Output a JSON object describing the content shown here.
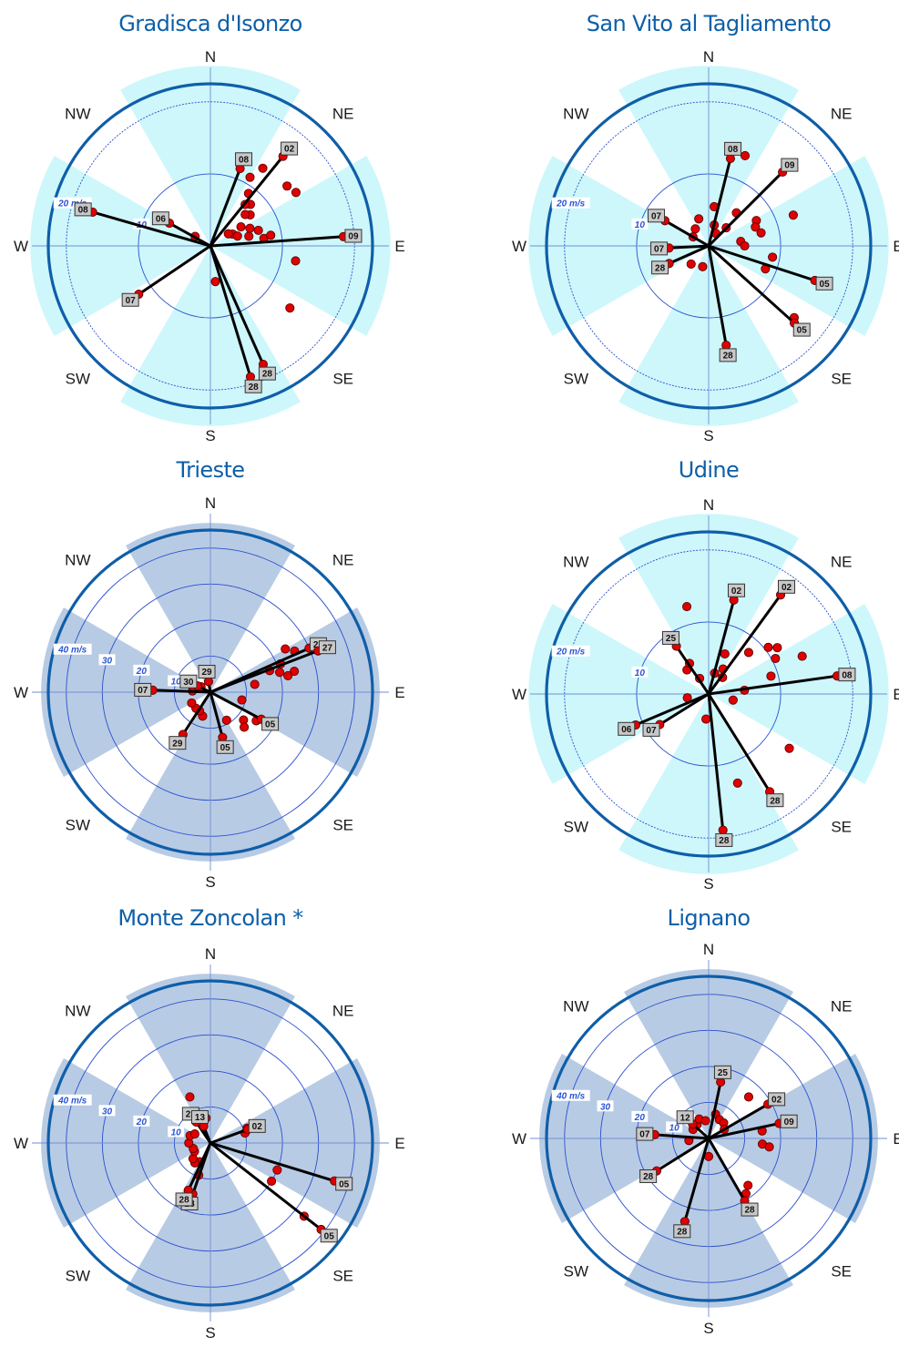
{
  "charts": [
    {
      "title": "Gradisca d'Isonzo",
      "sector_color": "#cdf7fb",
      "max_speed": 25,
      "rings": [
        10,
        20
      ],
      "ring_labels": [
        {
          "speed": 10,
          "text": "10"
        },
        {
          "speed": 20,
          "text": "20 m/s"
        }
      ],
      "sectors": [
        {
          "dir": "N",
          "speed": 25
        },
        {
          "dir": "E",
          "speed": 25
        },
        {
          "dir": "S",
          "speed": 25
        },
        {
          "dir": "W",
          "speed": 25
        }
      ],
      "direction_labels": [
        "N",
        "NE",
        "E",
        "SE",
        "S",
        "SW",
        "W",
        "NW"
      ],
      "peaks": [
        {
          "bearing": 21,
          "speed": 11.5,
          "day": "08"
        },
        {
          "bearing": 39,
          "speed": 16,
          "day": "02"
        },
        {
          "bearing": 86,
          "speed": 18.5,
          "day": "09"
        },
        {
          "bearing": 163,
          "speed": 19,
          "day": "28"
        },
        {
          "bearing": 156,
          "speed": 18,
          "day": "28"
        },
        {
          "bearing": 299,
          "speed": 6.5,
          "day": "06"
        },
        {
          "bearing": 286,
          "speed": 17,
          "day": "08"
        },
        {
          "bearing": 236,
          "speed": 12,
          "day": "07"
        }
      ],
      "observations": [
        {
          "bearing": 30,
          "speed": 11
        },
        {
          "bearing": 34,
          "speed": 13
        },
        {
          "bearing": 52,
          "speed": 13.5
        },
        {
          "bearing": 58,
          "speed": 14
        },
        {
          "bearing": 44,
          "speed": 8
        },
        {
          "bearing": 52,
          "speed": 7
        },
        {
          "bearing": 58,
          "speed": 5
        },
        {
          "bearing": 62,
          "speed": 3.5
        },
        {
          "bearing": 66,
          "speed": 6
        },
        {
          "bearing": 72,
          "speed": 7
        },
        {
          "bearing": 76,
          "speed": 5.5
        },
        {
          "bearing": 82,
          "speed": 7.5
        },
        {
          "bearing": 80,
          "speed": 8.5
        },
        {
          "bearing": 100,
          "speed": 12
        },
        {
          "bearing": 40,
          "speed": 7.5
        },
        {
          "bearing": 48,
          "speed": 6.5
        },
        {
          "bearing": 56,
          "speed": 3
        },
        {
          "bearing": 70,
          "speed": 4
        },
        {
          "bearing": 128,
          "speed": 14
        },
        {
          "bearing": 172,
          "speed": 5
        },
        {
          "bearing": 302,
          "speed": 2.5
        },
        {
          "bearing": 36,
          "speed": 9
        }
      ]
    },
    {
      "title": "San Vito al Tagliamento",
      "sector_color": "#cdf7fb",
      "max_speed": 25,
      "rings": [
        10,
        20
      ],
      "ring_labels": [
        {
          "speed": 10,
          "text": "10"
        },
        {
          "speed": 20,
          "text": "20 m/s"
        }
      ],
      "sectors": [
        {
          "dir": "N",
          "speed": 25
        },
        {
          "dir": "E",
          "speed": 25
        },
        {
          "dir": "S",
          "speed": 25
        },
        {
          "dir": "W",
          "speed": 25
        }
      ],
      "direction_labels": [
        "N",
        "NE",
        "E",
        "SE",
        "S",
        "SW",
        "W",
        "NW"
      ],
      "peaks": [
        {
          "bearing": 14,
          "speed": 12.5,
          "day": "08"
        },
        {
          "bearing": 45,
          "speed": 14.5,
          "day": "09"
        },
        {
          "bearing": 108,
          "speed": 15.5,
          "day": "05"
        },
        {
          "bearing": 132,
          "speed": 16,
          "day": "05"
        },
        {
          "bearing": 170,
          "speed": 14,
          "day": "28"
        },
        {
          "bearing": 246,
          "speed": 6,
          "day": "28"
        },
        {
          "bearing": 300,
          "speed": 7,
          "day": "07"
        },
        {
          "bearing": 267,
          "speed": 5.5,
          "day": "07"
        }
      ],
      "observations": [
        {
          "bearing": 22,
          "speed": 13.5
        },
        {
          "bearing": 40,
          "speed": 6
        },
        {
          "bearing": 62,
          "speed": 7.5
        },
        {
          "bearing": 70,
          "speed": 12.5
        },
        {
          "bearing": 76,
          "speed": 7.5
        },
        {
          "bearing": 68,
          "speed": 7
        },
        {
          "bearing": 82,
          "speed": 4.5
        },
        {
          "bearing": 90,
          "speed": 5
        },
        {
          "bearing": 100,
          "speed": 9
        },
        {
          "bearing": 112,
          "speed": 8.5
        },
        {
          "bearing": 8,
          "speed": 5.5
        },
        {
          "bearing": 30,
          "speed": 2
        },
        {
          "bearing": 44,
          "speed": 3.5
        },
        {
          "bearing": 340,
          "speed": 4
        },
        {
          "bearing": 322,
          "speed": 3
        },
        {
          "bearing": 300,
          "speed": 2.5
        },
        {
          "bearing": 224,
          "speed": 3.5
        },
        {
          "bearing": 196,
          "speed": 3
        },
        {
          "bearing": 130,
          "speed": 15.5
        },
        {
          "bearing": 15,
          "speed": 3
        }
      ]
    },
    {
      "title": "Trieste",
      "sector_color": "#b8cbe4",
      "max_speed": 50,
      "rings": [
        10,
        20,
        30,
        40
      ],
      "ring_labels": [
        {
          "speed": 10,
          "text": "10"
        },
        {
          "speed": 20,
          "text": "20"
        },
        {
          "speed": 30,
          "text": "30"
        },
        {
          "speed": 40,
          "text": "40 m/s"
        }
      ],
      "sectors": [
        {
          "dir": "N",
          "speed": 47
        },
        {
          "dir": "E",
          "speed": 47
        },
        {
          "dir": "S",
          "speed": 47
        },
        {
          "dir": "W",
          "speed": 47
        }
      ],
      "direction_labels": [
        "N",
        "NE",
        "E",
        "SE",
        "S",
        "SW",
        "W",
        "NW"
      ],
      "peaks": [
        {
          "bearing": 66,
          "speed": 30,
          "day": "27"
        },
        {
          "bearing": 69,
          "speed": 32,
          "day": "27"
        },
        {
          "bearing": 118,
          "speed": 16,
          "day": "05"
        },
        {
          "bearing": 165,
          "speed": 13,
          "day": "05"
        },
        {
          "bearing": 213,
          "speed": 14,
          "day": "29"
        },
        {
          "bearing": 272,
          "speed": 16,
          "day": "07"
        },
        {
          "bearing": 296,
          "speed": 4,
          "day": "30"
        },
        {
          "bearing": 350,
          "speed": 3,
          "day": "29"
        }
      ],
      "observations": [
        {
          "bearing": 60,
          "speed": 24
        },
        {
          "bearing": 64,
          "speed": 26
        },
        {
          "bearing": 68,
          "speed": 21
        },
        {
          "bearing": 70,
          "speed": 17.5
        },
        {
          "bearing": 74,
          "speed": 20
        },
        {
          "bearing": 76,
          "speed": 24
        },
        {
          "bearing": 78,
          "speed": 22
        },
        {
          "bearing": 80,
          "speed": 12.5
        },
        {
          "bearing": 104,
          "speed": 9
        },
        {
          "bearing": 122,
          "speed": 15
        },
        {
          "bearing": 130,
          "speed": 12
        },
        {
          "bearing": 136,
          "speed": 13.5
        },
        {
          "bearing": 150,
          "speed": 9
        },
        {
          "bearing": 198,
          "speed": 7
        },
        {
          "bearing": 210,
          "speed": 6
        },
        {
          "bearing": 222,
          "speed": 6
        },
        {
          "bearing": 240,
          "speed": 6
        },
        {
          "bearing": 274,
          "speed": 5
        },
        {
          "bearing": 288,
          "speed": 5
        },
        {
          "bearing": 300,
          "speed": 3
        }
      ]
    },
    {
      "title": "Udine",
      "sector_color": "#cdf7fb",
      "max_speed": 25,
      "rings": [
        10,
        20
      ],
      "ring_labels": [
        {
          "speed": 10,
          "text": "10"
        },
        {
          "speed": 20,
          "text": "20 m/s"
        }
      ],
      "sectors": [
        {
          "dir": "N",
          "speed": 25
        },
        {
          "dir": "E",
          "speed": 25
        },
        {
          "dir": "S",
          "speed": 25
        },
        {
          "dir": "W",
          "speed": 25
        }
      ],
      "direction_labels": [
        "N",
        "NE",
        "E",
        "SE",
        "S",
        "SW",
        "W",
        "NW"
      ],
      "peaks": [
        {
          "bearing": 15,
          "speed": 13.5,
          "day": "02"
        },
        {
          "bearing": 36,
          "speed": 17,
          "day": "02"
        },
        {
          "bearing": 82,
          "speed": 18,
          "day": "08"
        },
        {
          "bearing": 148,
          "speed": 16,
          "day": "28"
        },
        {
          "bearing": 174,
          "speed": 19,
          "day": "28"
        },
        {
          "bearing": 238,
          "speed": 8,
          "day": "07"
        },
        {
          "bearing": 247,
          "speed": 11,
          "day": "06"
        },
        {
          "bearing": 326,
          "speed": 8,
          "day": "25"
        }
      ],
      "observations": [
        {
          "bearing": 346,
          "speed": 12.5
        },
        {
          "bearing": 22,
          "speed": 6
        },
        {
          "bearing": 30,
          "speed": 4
        },
        {
          "bearing": 44,
          "speed": 8
        },
        {
          "bearing": 52,
          "speed": 10.5
        },
        {
          "bearing": 56,
          "speed": 11.5
        },
        {
          "bearing": 62,
          "speed": 10.5
        },
        {
          "bearing": 68,
          "speed": 14
        },
        {
          "bearing": 74,
          "speed": 9
        },
        {
          "bearing": 84,
          "speed": 5
        },
        {
          "bearing": 104,
          "speed": 3.5
        },
        {
          "bearing": 124,
          "speed": 13.5
        },
        {
          "bearing": 162,
          "speed": 13
        },
        {
          "bearing": 186,
          "speed": 3.5
        },
        {
          "bearing": 260,
          "speed": 3
        },
        {
          "bearing": 318,
          "speed": 4.5
        },
        {
          "bearing": 328,
          "speed": 5
        },
        {
          "bearing": 16,
          "speed": 3
        },
        {
          "bearing": 40,
          "speed": 3
        },
        {
          "bearing": 330,
          "speed": 2.5
        }
      ]
    },
    {
      "title": "Monte Zoncolan *",
      "sector_color": "#b8cbe4",
      "max_speed": 50,
      "rings": [
        10,
        20,
        30,
        40
      ],
      "ring_labels": [
        {
          "speed": 10,
          "text": "10"
        },
        {
          "speed": 20,
          "text": "20"
        },
        {
          "speed": 30,
          "text": "30"
        },
        {
          "speed": 40,
          "text": "40 m/s"
        }
      ],
      "sectors": [
        {
          "dir": "N",
          "speed": 47
        },
        {
          "dir": "E",
          "speed": 47
        },
        {
          "dir": "S",
          "speed": 47
        },
        {
          "dir": "W",
          "speed": 47
        }
      ],
      "direction_labels": [
        "N",
        "NE",
        "E",
        "SE",
        "S",
        "SW",
        "W",
        "NW"
      ],
      "peaks": [
        {
          "bearing": 70,
          "speed": 11,
          "day": "02"
        },
        {
          "bearing": 107,
          "speed": 36,
          "day": "05"
        },
        {
          "bearing": 128,
          "speed": 39,
          "day": "05"
        },
        {
          "bearing": 199,
          "speed": 15,
          "day": "28"
        },
        {
          "bearing": 205,
          "speed": 14.5,
          "day": "28"
        },
        {
          "bearing": 326,
          "speed": 7,
          "day": "23"
        },
        {
          "bearing": 338,
          "speed": 5,
          "day": "13"
        }
      ],
      "observations": [
        {
          "bearing": 336,
          "speed": 14
        },
        {
          "bearing": 350,
          "speed": 7
        },
        {
          "bearing": 68,
          "speed": 11
        },
        {
          "bearing": 74,
          "speed": 10
        },
        {
          "bearing": 112,
          "speed": 20
        },
        {
          "bearing": 122,
          "speed": 20
        },
        {
          "bearing": 128,
          "speed": 33
        },
        {
          "bearing": 200,
          "speed": 9.5
        },
        {
          "bearing": 210,
          "speed": 6
        },
        {
          "bearing": 218,
          "speed": 7
        },
        {
          "bearing": 228,
          "speed": 6.5
        },
        {
          "bearing": 242,
          "speed": 5
        },
        {
          "bearing": 252,
          "speed": 5
        },
        {
          "bearing": 270,
          "speed": 6
        },
        {
          "bearing": 290,
          "speed": 6
        },
        {
          "bearing": 300,
          "speed": 5
        }
      ]
    },
    {
      "title": "Lignano",
      "sector_color": "#b8cbe4",
      "max_speed": 50,
      "rings": [
        10,
        20,
        30,
        40
      ],
      "ring_labels": [
        {
          "speed": 10,
          "text": "10"
        },
        {
          "speed": 20,
          "text": "20"
        },
        {
          "speed": 30,
          "text": "30"
        },
        {
          "speed": 40,
          "text": "40 m/s"
        }
      ],
      "sectors": [
        {
          "dir": "N",
          "speed": 47
        },
        {
          "dir": "E",
          "speed": 47
        },
        {
          "dir": "S",
          "speed": 47
        },
        {
          "dir": "W",
          "speed": 47
        }
      ],
      "direction_labels": [
        "N",
        "NE",
        "E",
        "SE",
        "S",
        "SW",
        "W",
        "NW"
      ],
      "peaks": [
        {
          "bearing": 12,
          "speed": 16,
          "day": "25"
        },
        {
          "bearing": 60,
          "speed": 19,
          "day": "02"
        },
        {
          "bearing": 78,
          "speed": 20,
          "day": "09"
        },
        {
          "bearing": 150,
          "speed": 20,
          "day": "28"
        },
        {
          "bearing": 196,
          "speed": 24,
          "day": "28"
        },
        {
          "bearing": 238,
          "speed": 17,
          "day": "28"
        },
        {
          "bearing": 274,
          "speed": 15,
          "day": "07"
        },
        {
          "bearing": 312,
          "speed": 6,
          "day": "12"
        }
      ],
      "observations": [
        {
          "bearing": 44,
          "speed": 16
        },
        {
          "bearing": 82,
          "speed": 15
        },
        {
          "bearing": 96,
          "speed": 15
        },
        {
          "bearing": 98,
          "speed": 17
        },
        {
          "bearing": 140,
          "speed": 17
        },
        {
          "bearing": 146,
          "speed": 18.5
        },
        {
          "bearing": 16,
          "speed": 7
        },
        {
          "bearing": 30,
          "speed": 6
        },
        {
          "bearing": 44,
          "speed": 6
        },
        {
          "bearing": 60,
          "speed": 5
        },
        {
          "bearing": 320,
          "speed": 5
        },
        {
          "bearing": 334,
          "speed": 6
        },
        {
          "bearing": 350,
          "speed": 5
        },
        {
          "bearing": 300,
          "speed": 5
        },
        {
          "bearing": 264,
          "speed": 5.5
        },
        {
          "bearing": 180,
          "speed": 5
        }
      ]
    }
  ]
}
